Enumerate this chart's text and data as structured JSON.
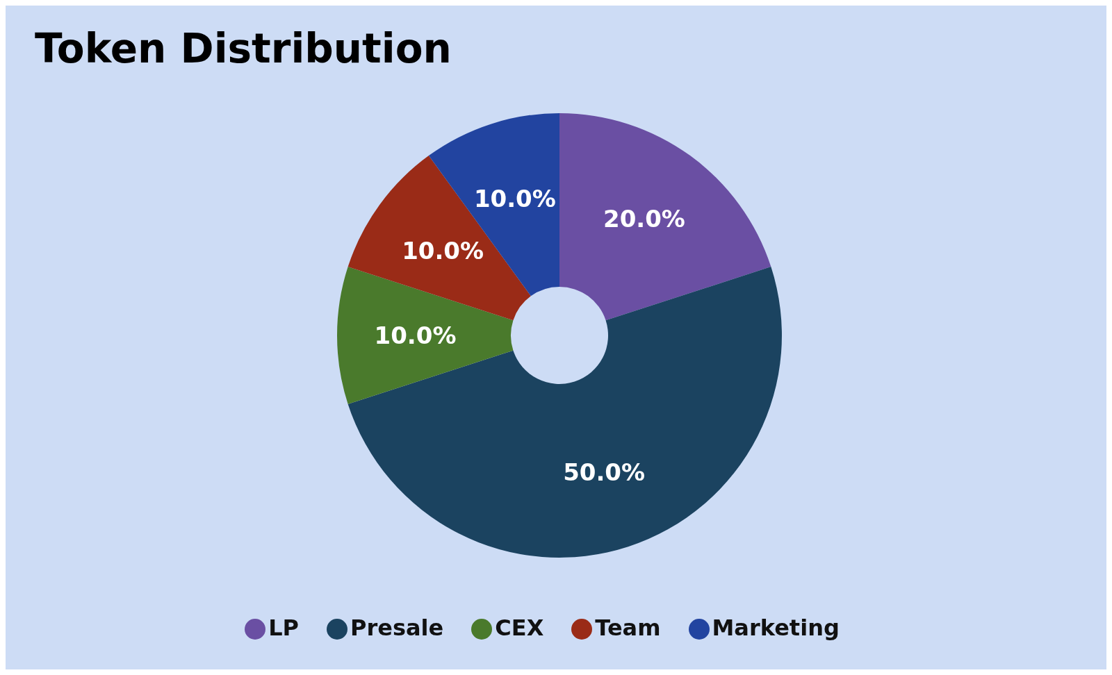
{
  "chart_data": {
    "type": "donut",
    "title": "Token Distribution",
    "categories": [
      "LP",
      "Presale",
      "CEX",
      "Team",
      "Marketing"
    ],
    "values": [
      20,
      50,
      10,
      10,
      10
    ],
    "value_labels": [
      "20.0%",
      "50.0%",
      "10.0%",
      "10.0%",
      "10.0%"
    ],
    "colors": [
      "#6a4fa3",
      "#1b4360",
      "#4a7a2c",
      "#9a2b17",
      "#2244a0"
    ],
    "legend": "bottom"
  }
}
